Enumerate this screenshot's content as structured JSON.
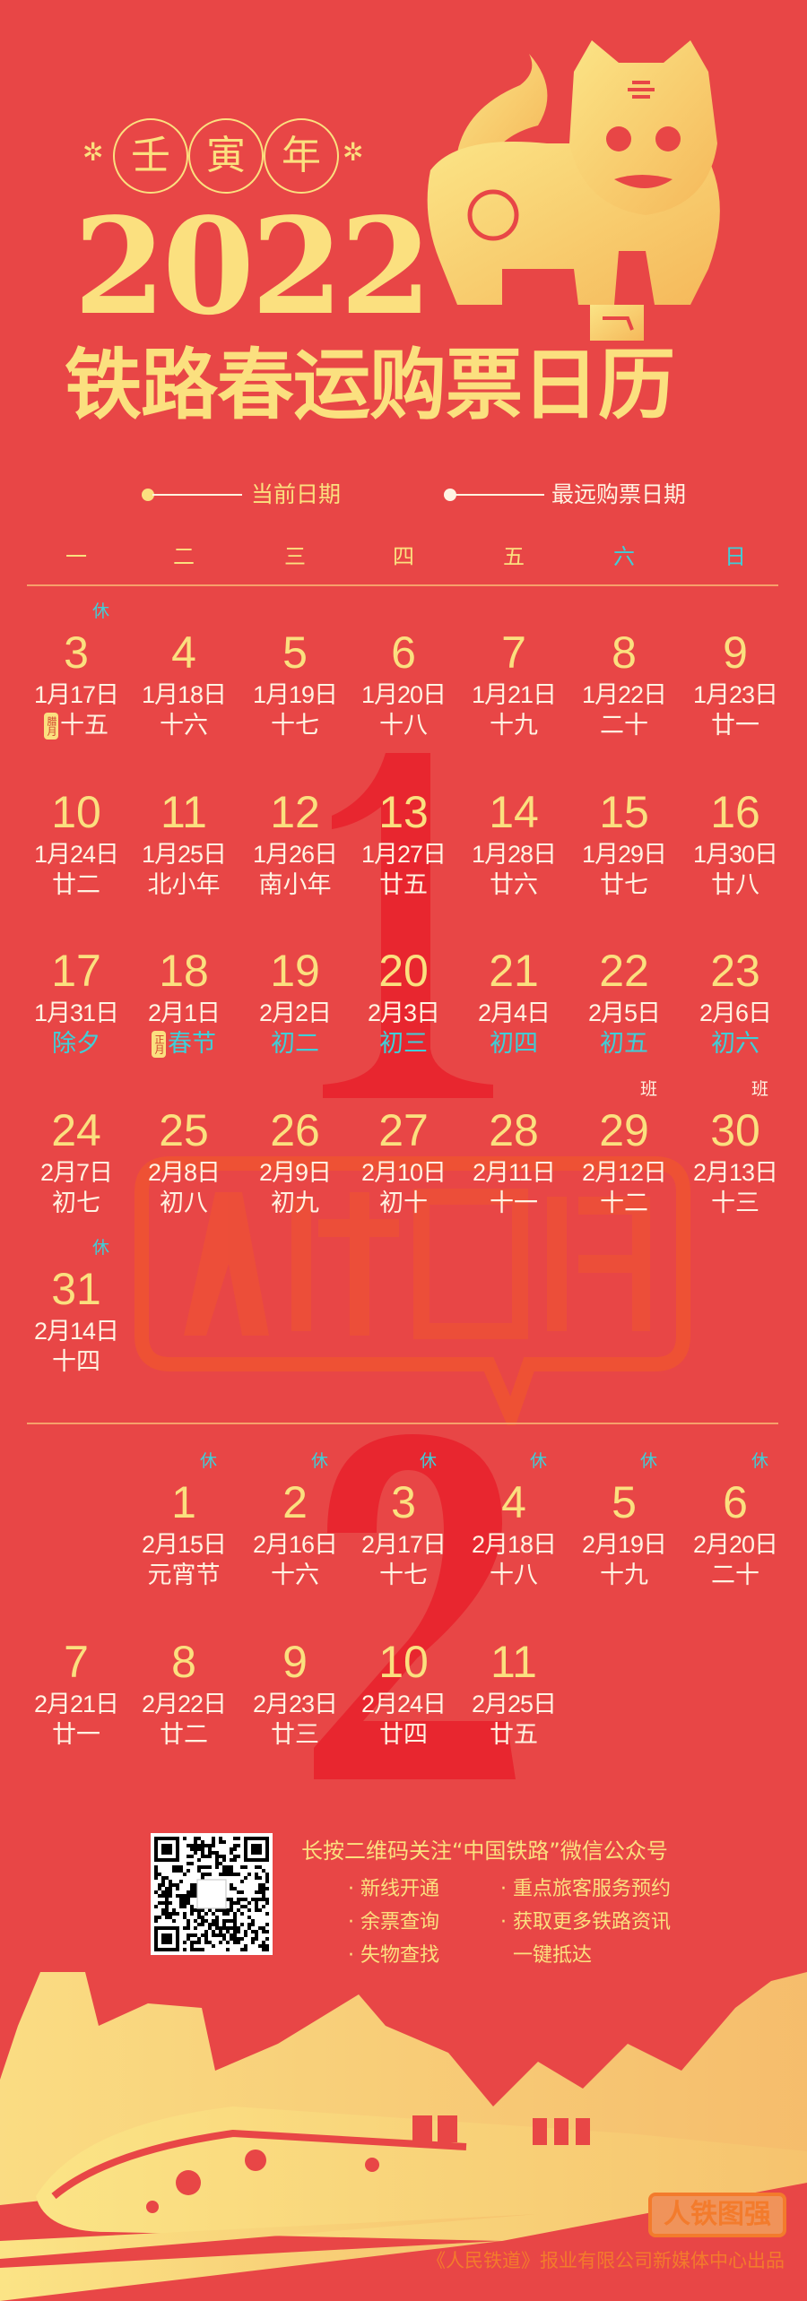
{
  "header": {
    "year_name": [
      "壬",
      "寅",
      "年"
    ],
    "year": "2022",
    "title": "铁路春运购票日历"
  },
  "legend": {
    "current_date": "当前日期",
    "farthest_date": "最远购票日期"
  },
  "weekdays": [
    "一",
    "二",
    "三",
    "四",
    "五",
    "六",
    "日"
  ],
  "colors": {
    "background": "#e84646",
    "gold": "#fbe07f",
    "cyan": "#3fcfd8",
    "text": "#fff3e2",
    "watermark": "#e8262f"
  },
  "months": [
    {
      "label": "1",
      "start_col": 0,
      "days": [
        {
          "day": "3",
          "date": "1月17日",
          "lunar": "十五",
          "badge": "休",
          "month_marker": "腊月"
        },
        {
          "day": "4",
          "date": "1月18日",
          "lunar": "十六"
        },
        {
          "day": "5",
          "date": "1月19日",
          "lunar": "十七"
        },
        {
          "day": "6",
          "date": "1月20日",
          "lunar": "十八"
        },
        {
          "day": "7",
          "date": "1月21日",
          "lunar": "十九"
        },
        {
          "day": "8",
          "date": "1月22日",
          "lunar": "二十"
        },
        {
          "day": "9",
          "date": "1月23日",
          "lunar": "廿一"
        },
        {
          "day": "10",
          "date": "1月24日",
          "lunar": "廿二"
        },
        {
          "day": "11",
          "date": "1月25日",
          "lunar": "北小年"
        },
        {
          "day": "12",
          "date": "1月26日",
          "lunar": "南小年"
        },
        {
          "day": "13",
          "date": "1月27日",
          "lunar": "廿五"
        },
        {
          "day": "14",
          "date": "1月28日",
          "lunar": "廿六"
        },
        {
          "day": "15",
          "date": "1月29日",
          "lunar": "廿七"
        },
        {
          "day": "16",
          "date": "1月30日",
          "lunar": "廿八"
        },
        {
          "day": "17",
          "date": "1月31日",
          "lunar": "除夕",
          "highlight": true
        },
        {
          "day": "18",
          "date": "2月1日",
          "lunar": "春节",
          "highlight": true,
          "month_marker": "正月"
        },
        {
          "day": "19",
          "date": "2月2日",
          "lunar": "初二",
          "highlight": true
        },
        {
          "day": "20",
          "date": "2月3日",
          "lunar": "初三",
          "highlight": true
        },
        {
          "day": "21",
          "date": "2月4日",
          "lunar": "初四",
          "highlight": true
        },
        {
          "day": "22",
          "date": "2月5日",
          "lunar": "初五",
          "highlight": true
        },
        {
          "day": "23",
          "date": "2月6日",
          "lunar": "初六",
          "highlight": true
        },
        {
          "day": "24",
          "date": "2月7日",
          "lunar": "初七"
        },
        {
          "day": "25",
          "date": "2月8日",
          "lunar": "初八"
        },
        {
          "day": "26",
          "date": "2月9日",
          "lunar": "初九"
        },
        {
          "day": "27",
          "date": "2月10日",
          "lunar": "初十"
        },
        {
          "day": "28",
          "date": "2月11日",
          "lunar": "十一"
        },
        {
          "day": "29",
          "date": "2月12日",
          "lunar": "十二",
          "badge": "班"
        },
        {
          "day": "30",
          "date": "2月13日",
          "lunar": "十三",
          "badge": "班"
        },
        {
          "day": "31",
          "date": "2月14日",
          "lunar": "十四",
          "badge": "休"
        }
      ]
    },
    {
      "label": "2",
      "start_col": 1,
      "days": [
        {
          "day": "1",
          "date": "2月15日",
          "lunar": "元宵节",
          "badge": "休"
        },
        {
          "day": "2",
          "date": "2月16日",
          "lunar": "十六",
          "badge": "休"
        },
        {
          "day": "3",
          "date": "2月17日",
          "lunar": "十七",
          "badge": "休"
        },
        {
          "day": "4",
          "date": "2月18日",
          "lunar": "十八",
          "badge": "休"
        },
        {
          "day": "5",
          "date": "2月19日",
          "lunar": "十九",
          "badge": "休"
        },
        {
          "day": "6",
          "date": "2月20日",
          "lunar": "二十",
          "badge": "休"
        },
        {
          "day": "7",
          "date": "2月21日",
          "lunar": "廿一"
        },
        {
          "day": "8",
          "date": "2月22日",
          "lunar": "廿二"
        },
        {
          "day": "9",
          "date": "2月23日",
          "lunar": "廿三"
        },
        {
          "day": "10",
          "date": "2月24日",
          "lunar": "廿四"
        },
        {
          "day": "11",
          "date": "2月25日",
          "lunar": "廿五"
        }
      ]
    }
  ],
  "promo": {
    "headline": "长按二维码关注“中国铁路”微信公众号",
    "features_left": [
      "新线开通",
      "余票查询",
      "失物查找"
    ],
    "features_right": [
      "重点旅客服务预约",
      "获取更多铁路资讯",
      "一键抵达"
    ]
  },
  "footer": {
    "watermark_logo": "人铁图强",
    "logo": "人铁图强",
    "credit": "《人民铁道》报业有限公司新媒体中心出品"
  }
}
